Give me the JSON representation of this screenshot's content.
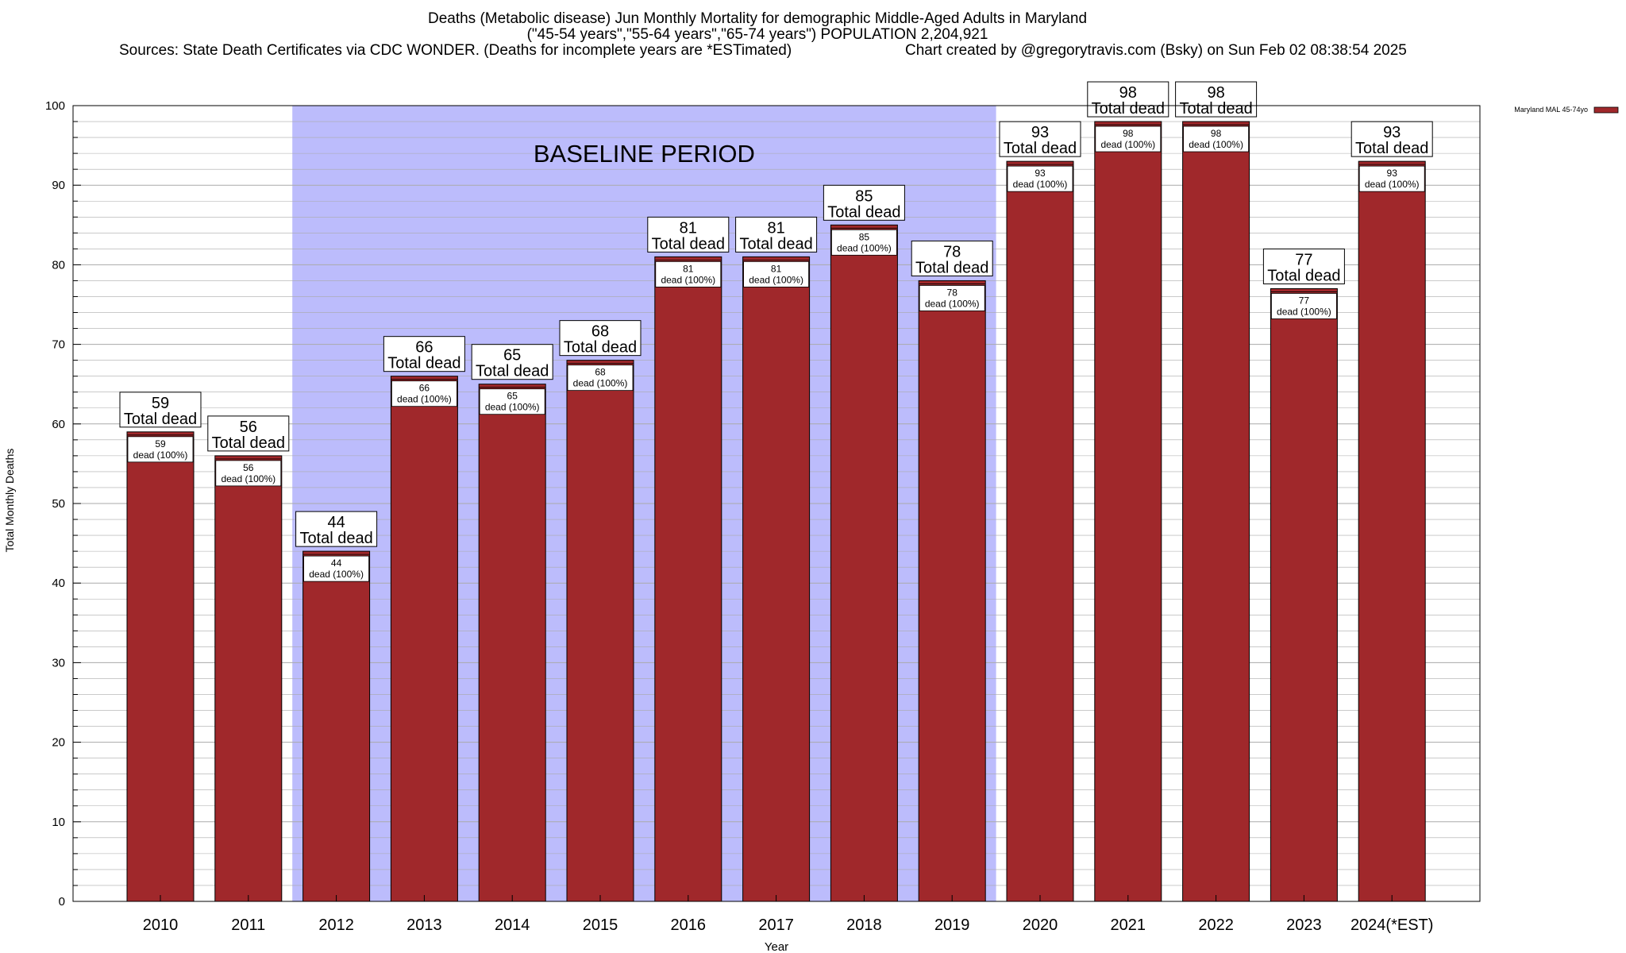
{
  "header": {
    "title_line1": "Deaths (Metabolic disease) Jun Monthly Mortality for demographic Middle-Aged Adults in Maryland",
    "title_line2": "(\"45-54 years\",\"55-64 years\",\"65-74 years\") POPULATION 2,204,921",
    "sources": "Sources: State Death Certificates via CDC WONDER. (Deaths for incomplete years are *ESTimated)",
    "credit": "Chart created by @gregorytravis.com (Bsky) on Sun Feb 02 08:38:54 2025"
  },
  "colors": {
    "bar": "#a0282b",
    "baseline": "#bcbcfc",
    "grid": "#aaaaaa"
  },
  "chart_data": {
    "type": "bar",
    "title": "Deaths (Metabolic disease) Jun Monthly Mortality for demographic Middle-Aged Adults in Maryland",
    "xlabel": "Year",
    "ylabel": "Total Monthly Deaths",
    "ylim": [
      0,
      100
    ],
    "yticks": [
      0,
      10,
      20,
      30,
      40,
      50,
      60,
      70,
      80,
      90,
      100
    ],
    "categories": [
      "2010",
      "2011",
      "2012",
      "2013",
      "2014",
      "2015",
      "2016",
      "2017",
      "2018",
      "2019",
      "2020",
      "2021",
      "2022",
      "2023",
      "2024(*EST)"
    ],
    "series": [
      {
        "name": "Maryland MAL 45-74yo",
        "values": [
          59,
          56,
          44,
          66,
          65,
          68,
          81,
          81,
          85,
          78,
          93,
          98,
          98,
          77,
          93
        ]
      }
    ],
    "total_label": "Total dead",
    "inner_label": "dead (100%)",
    "annotation": {
      "text": "BASELINE PERIOD",
      "from_category": "2012",
      "to_category": "2019"
    },
    "legend_position": "top-right",
    "legend_label": "Maryland MAL 45-74yo"
  }
}
